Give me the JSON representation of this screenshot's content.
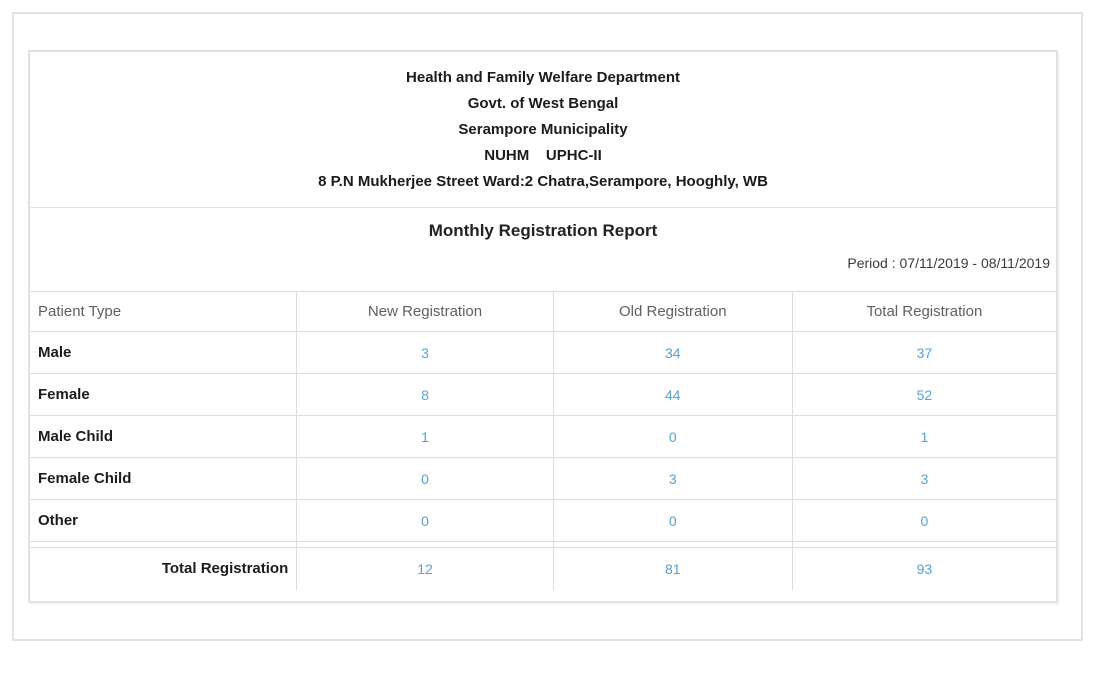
{
  "header": {
    "lines": [
      "Health and Family Welfare Department",
      "Govt. of West Bengal",
      "Serampore Municipality",
      "NUHM    UPHC-II",
      "8 P.N Mukherjee Street Ward:2 Chatra,Serampore, Hooghly, WB"
    ]
  },
  "report": {
    "title": "Monthly Registration Report",
    "period": "Period : 07/11/2019 - 08/11/2019"
  },
  "table": {
    "columns": [
      "Patient Type",
      "New Registration",
      "Old Registration",
      "Total Registration"
    ],
    "rows": [
      {
        "label": "Male",
        "new": "3",
        "old": "34",
        "total": "37"
      },
      {
        "label": "Female",
        "new": "8",
        "old": "44",
        "total": "52"
      },
      {
        "label": "Male Child",
        "new": "1",
        "old": "0",
        "total": "1"
      },
      {
        "label": "Female Child",
        "new": "0",
        "old": "3",
        "total": "3"
      },
      {
        "label": "Other",
        "new": "0",
        "old": "0",
        "total": "0"
      }
    ],
    "footer": {
      "label": "Total Registration",
      "new": "12",
      "old": "81",
      "total": "93"
    }
  },
  "colors": {
    "link_blue": "#54a1d5",
    "grid_line": "#dcdcdc",
    "panel_border": "#e0e0e0"
  }
}
